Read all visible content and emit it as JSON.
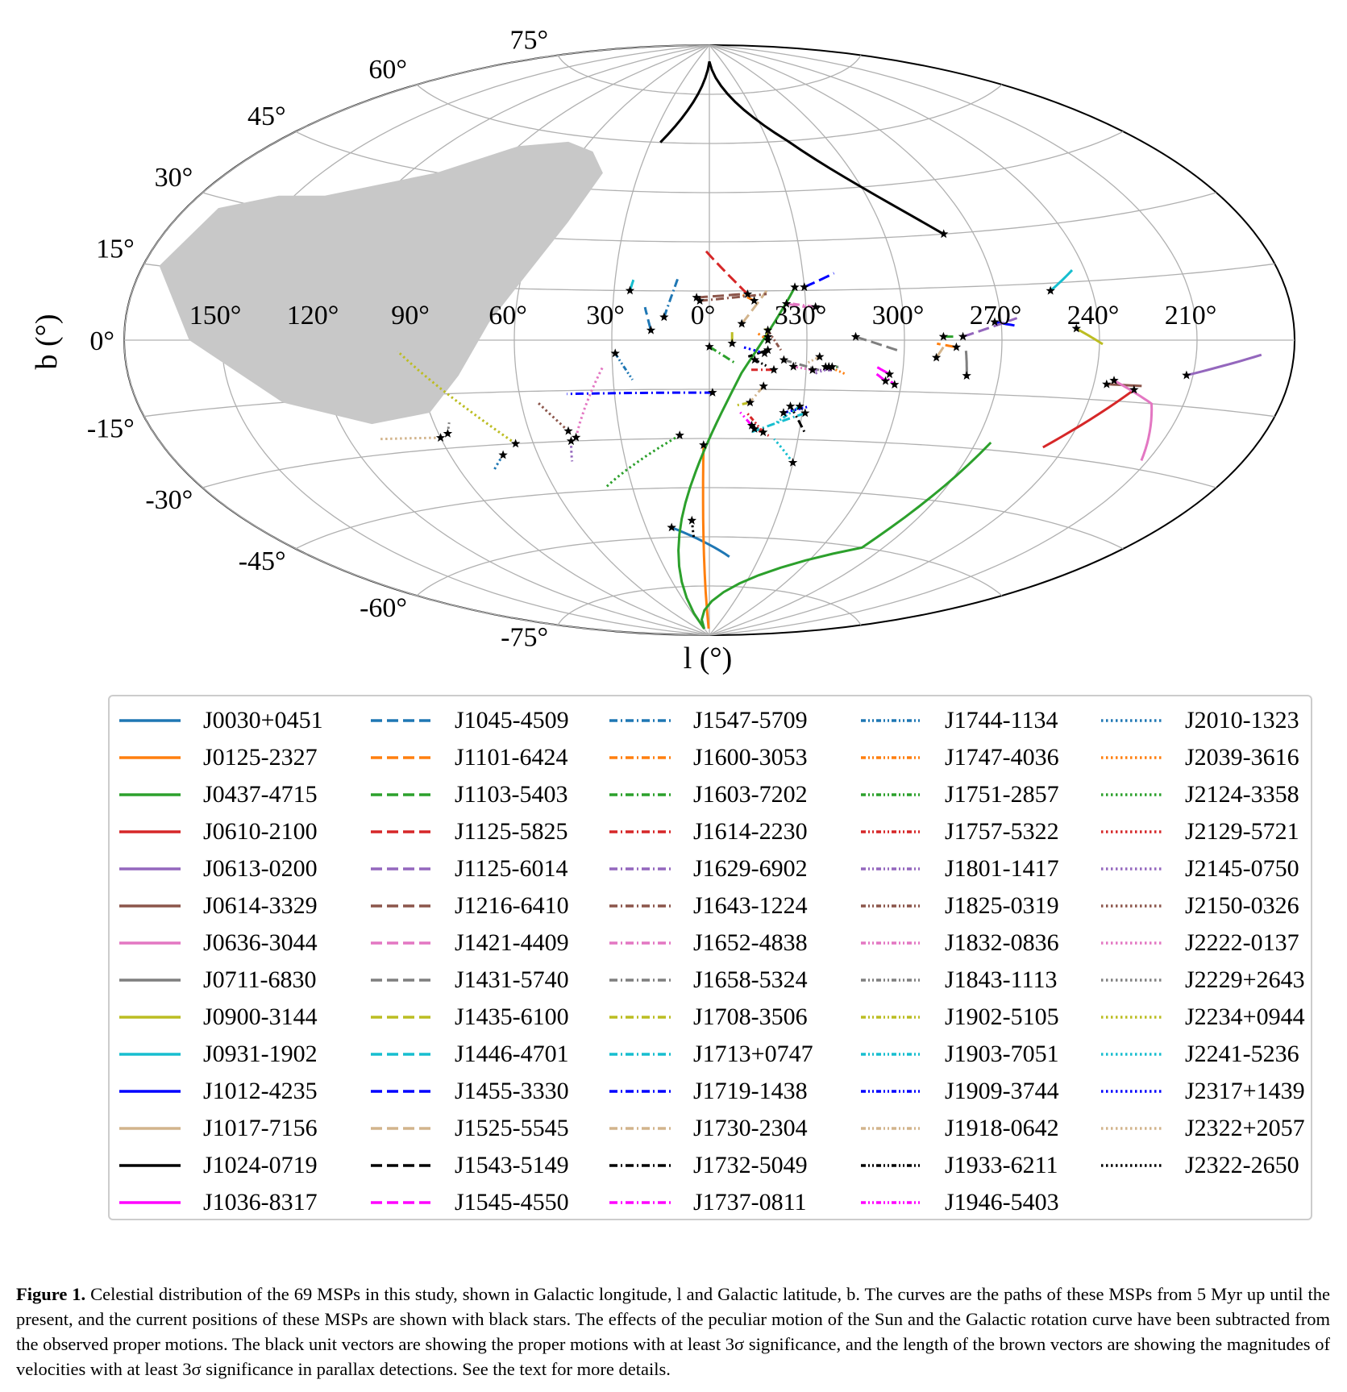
{
  "chart_data": {
    "type": "line",
    "projection": "aitoff",
    "xlabel": "l (°)",
    "ylabel": "b (°)",
    "lon_ticks": [
      "150°",
      "120°",
      "90°",
      "60°",
      "30°",
      "0°",
      "330°",
      "300°",
      "270°",
      "240°",
      "210°"
    ],
    "lat_ticks": [
      "75°",
      "60°",
      "45°",
      "30°",
      "15°",
      "0°",
      "-15°",
      "-30°",
      "-45°",
      "-60°",
      "-75°"
    ],
    "grid": true,
    "shaded_region": "gray patch in upper-left (unobservable sky)",
    "current_position_marker": "black star",
    "series": [
      {
        "name": "J0030+0451",
        "color": "#1f77b4",
        "style": "solid",
        "path": [
          [
            18,
            -57
          ],
          [
            -12,
            -66
          ]
        ]
      },
      {
        "name": "J0125-2327",
        "color": "#ff7f0e",
        "style": "solid",
        "path": [
          [
            2,
            -32
          ],
          [
            4,
            -88
          ]
        ]
      },
      {
        "name": "J0437-4715",
        "color": "#2ca02c",
        "style": "solid",
        "path": [
          [
            -27,
            16
          ],
          [
            -10,
            -10
          ],
          [
            5,
            -40
          ],
          [
            30,
            -88
          ],
          [
            -80,
            -60
          ],
          [
            -95,
            -28
          ]
        ]
      },
      {
        "name": "J0610-2100",
        "color": "#d62728",
        "style": "solid",
        "path": [
          [
            -133,
            -12
          ],
          [
            -113,
            -28
          ]
        ]
      },
      {
        "name": "J0613-0200",
        "color": "#9467bd",
        "style": "solid",
        "path": [
          [
            -148,
            -8
          ],
          [
            -170,
            -3
          ]
        ]
      },
      {
        "name": "J0614-3329",
        "color": "#8c564b",
        "style": "solid",
        "path": [
          [
            -124,
            -11
          ],
          [
            -135,
            -11
          ]
        ]
      },
      {
        "name": "J0636-3044",
        "color": "#e377c2",
        "style": "solid",
        "path": [
          [
            -126,
            -10
          ],
          [
            -140,
            -15
          ],
          [
            -148,
            -28
          ]
        ]
      },
      {
        "name": "J0711-6830",
        "color": "#7f7f7f",
        "style": "solid",
        "path": [
          [
            -80,
            -10
          ],
          [
            -79,
            -3
          ]
        ]
      },
      {
        "name": "J0900-3144",
        "color": "#bcbd22",
        "style": "solid",
        "path": [
          [
            -113,
            3
          ],
          [
            -121,
            -1
          ]
        ]
      },
      {
        "name": "J0931-1902",
        "color": "#17becf",
        "style": "solid",
        "path": [
          [
            -107,
            13
          ],
          [
            -116,
            18
          ]
        ]
      },
      {
        "name": "J1012-4235",
        "color": "#0000ff",
        "style": "solid",
        "path": [
          [
            -88,
            5
          ],
          [
            -94,
            4
          ]
        ]
      },
      {
        "name": "J1017-7156",
        "color": "#d2b48c",
        "style": "solid",
        "path": [
          [
            -70,
            -5
          ],
          [
            -72,
            -2
          ]
        ]
      },
      {
        "name": "J1024-0719",
        "color": "#000000",
        "style": "solid",
        "path": [
          [
            -80,
            30
          ],
          [
            -40,
            60
          ],
          [
            0,
            85
          ],
          [
            25,
            60
          ]
        ]
      },
      {
        "name": "J1036-8317",
        "color": "#ff00ff",
        "style": "solid",
        "path": [
          [
            -56,
            -10
          ],
          [
            -52,
            -8
          ]
        ]
      },
      {
        "name": "J1045-4509",
        "color": "#1f77b4",
        "style": "dashed",
        "path": [
          [
            18,
            3
          ],
          [
            20,
            10
          ]
        ]
      },
      {
        "name": "J1101-6424",
        "color": "#ff7f0e",
        "style": "dashed",
        "path": [
          [
            -76,
            -2
          ],
          [
            -70,
            -1
          ]
        ]
      },
      {
        "name": "J1103-5403",
        "color": "#2ca02c",
        "style": "dashed",
        "path": [
          [
            -72,
            1
          ],
          [
            -75,
            1
          ]
        ]
      },
      {
        "name": "J1125-5825",
        "color": "#d62728",
        "style": "dashed",
        "path": [
          [
            -12,
            14
          ],
          [
            2,
            28
          ]
        ]
      },
      {
        "name": "J1125-6014",
        "color": "#9467bd",
        "style": "dashed",
        "path": [
          [
            -78,
            1
          ],
          [
            -95,
            6
          ]
        ]
      },
      {
        "name": "J1216-6410",
        "color": "#8c564b",
        "style": "dashed",
        "path": [
          [
            4,
            13
          ],
          [
            -10,
            14
          ]
        ]
      },
      {
        "name": "J1421-4409",
        "color": "#e377c2",
        "style": "dashed",
        "path": [
          [
            -24,
            11
          ],
          [
            -30,
            10
          ]
        ]
      },
      {
        "name": "J1431-5740",
        "color": "#7f7f7f",
        "style": "dashed",
        "path": [
          [
            -45,
            1
          ],
          [
            -58,
            -3
          ]
        ]
      },
      {
        "name": "J1435-6100",
        "color": "#bcbd22",
        "style": "dashed",
        "path": [
          [
            -7,
            -1
          ],
          [
            -7,
            3
          ]
        ]
      },
      {
        "name": "J1446-4701",
        "color": "#17becf",
        "style": "dashed",
        "path": [
          [
            25,
            15
          ],
          [
            24,
            19
          ]
        ]
      },
      {
        "name": "J1455-3330",
        "color": "#0000ff",
        "style": "dashed",
        "path": [
          [
            -30,
            16
          ],
          [
            -40,
            20
          ]
        ]
      },
      {
        "name": "J1525-5545",
        "color": "#d2b48c",
        "style": "dashed",
        "path": [
          [
            -10,
            5
          ],
          [
            -18,
            15
          ]
        ]
      },
      {
        "name": "J1543-5149",
        "color": "#000000",
        "style": "dashed",
        "path": [
          [
            -18,
            -3
          ],
          [
            -12,
            -5
          ]
        ]
      },
      {
        "name": "J1545-4550",
        "color": "#ff00ff",
        "style": "dashed",
        "path": [
          [
            -55,
            -12
          ],
          [
            -52,
            -10
          ]
        ]
      },
      {
        "name": "J1547-5709",
        "color": "#1f77b4",
        "style": "dashdot",
        "path": [
          [
            14,
            7
          ],
          [
            10,
            19
          ]
        ]
      },
      {
        "name": "J1600-3053",
        "color": "#ff7f0e",
        "style": "dashdot",
        "path": [
          [
            -14,
            12
          ],
          [
            -10,
            14
          ]
        ]
      },
      {
        "name": "J1603-7202",
        "color": "#2ca02c",
        "style": "dashdot",
        "path": [
          [
            0,
            -2
          ],
          [
            -8,
            -7
          ]
        ]
      },
      {
        "name": "J1614-2230",
        "color": "#d62728",
        "style": "dashdot",
        "path": [
          [
            -20,
            -9
          ],
          [
            -13,
            -9
          ]
        ]
      },
      {
        "name": "J1629-6902",
        "color": "#9467bd",
        "style": "dashdot",
        "path": [
          [
            -38,
            -8
          ],
          [
            -33,
            -10
          ]
        ]
      },
      {
        "name": "J1643-1224",
        "color": "#8c564b",
        "style": "dashdot",
        "path": [
          [
            3,
            12
          ],
          [
            -18,
            14
          ]
        ]
      },
      {
        "name": "J1652-4838",
        "color": "#e377c2",
        "style": "dashdot",
        "path": [
          [
            -33,
            10
          ],
          [
            -26,
            11
          ]
        ]
      },
      {
        "name": "J1658-5324",
        "color": "#7f7f7f",
        "style": "dashdot",
        "path": [
          [
            -23,
            -6
          ],
          [
            -34,
            -9
          ]
        ]
      },
      {
        "name": "J1708-3506",
        "color": "#bcbd22",
        "style": "dashdot",
        "path": [
          [
            -13,
            -19
          ],
          [
            -8,
            -20
          ]
        ]
      },
      {
        "name": "J1713+0747",
        "color": "#17becf",
        "style": "dashdot",
        "path": [
          [
            -31,
            -22
          ],
          [
            -14,
            -28
          ]
        ]
      },
      {
        "name": "J1719-1438",
        "color": "#0000ff",
        "style": "dashdot",
        "path": [
          [
            -1,
            -16
          ],
          [
            45,
            -16
          ]
        ]
      },
      {
        "name": "J1730-2304",
        "color": "#d2b48c",
        "style": "dashdot",
        "path": [
          [
            -17,
            -14
          ],
          [
            -12,
            -20
          ]
        ]
      },
      {
        "name": "J1732-5049",
        "color": "#000000",
        "style": "dashdot",
        "path": [
          [
            -26,
            -20
          ],
          [
            -32,
            -28
          ]
        ]
      },
      {
        "name": "J1737-0811",
        "color": "#ff00ff",
        "style": "dashdot",
        "path": [
          [
            -14,
            -26
          ],
          [
            -10,
            -22
          ]
        ]
      },
      {
        "name": "J1744-1134",
        "color": "#1f77b4",
        "style": "dashdot2",
        "path": [
          [
            29,
            -4
          ],
          [
            24,
            -12
          ]
        ]
      },
      {
        "name": "J1747-4036",
        "color": "#ff7f0e",
        "style": "dashdot2",
        "path": [
          [
            -37,
            -8
          ],
          [
            -42,
            -10
          ]
        ]
      },
      {
        "name": "J1751-2857",
        "color": "#2ca02c",
        "style": "dashdot2",
        "path": [
          [
            -37,
            -8
          ],
          [
            -40,
            -8
          ]
        ]
      },
      {
        "name": "J1757-5322",
        "color": "#d62728",
        "style": "dashdot2",
        "path": [
          [
            -18,
            -28
          ],
          [
            -12,
            -22
          ]
        ]
      },
      {
        "name": "J1801-1417",
        "color": "#9467bd",
        "style": "dashdot2",
        "path": [
          [
            -32,
            -9
          ],
          [
            -38,
            -9
          ]
        ]
      },
      {
        "name": "J1825-0319",
        "color": "#8c564b",
        "style": "dashdot2",
        "path": [
          [
            -18,
            3
          ],
          [
            -22,
            -3
          ]
        ]
      },
      {
        "name": "J1832-0836",
        "color": "#e377c2",
        "style": "dashdot2",
        "path": [
          [
            -26,
            -8
          ],
          [
            -32,
            -9
          ]
        ]
      },
      {
        "name": "J1843-1113",
        "color": "#7f7f7f",
        "style": "dashdot2",
        "path": [
          [
            -36,
            -8
          ],
          [
            -40,
            -8
          ]
        ]
      },
      {
        "name": "J1902-5105",
        "color": "#bcbd22",
        "style": "dashdot2",
        "path": [
          [
            -18,
            1
          ],
          [
            -17,
            4
          ]
        ]
      },
      {
        "name": "J1903-7051",
        "color": "#17becf",
        "style": "dashdot2",
        "path": [
          [
            -29,
            -20
          ],
          [
            -22,
            -25
          ]
        ]
      },
      {
        "name": "J1909-3744",
        "color": "#0000ff",
        "style": "dashdot2",
        "path": [
          [
            -24,
            -22
          ],
          [
            -32,
            -20
          ]
        ]
      },
      {
        "name": "J1918-0642",
        "color": "#d2b48c",
        "style": "dashdot2",
        "path": [
          [
            -34,
            -5
          ],
          [
            -30,
            -7
          ]
        ]
      },
      {
        "name": "J1933-6211",
        "color": "#000000",
        "style": "dashdot2",
        "path": [
          [
            -14,
            -6
          ],
          [
            -18,
            -8
          ]
        ]
      },
      {
        "name": "J1946-5403",
        "color": "#ff00ff",
        "style": "dashdot2",
        "path": [
          [
            -58,
            -13
          ],
          [
            -55,
            -11
          ]
        ]
      },
      {
        "name": "J2010-1323",
        "color": "#1f77b4",
        "style": "dotted",
        "path": [
          [
            72,
            -33
          ],
          [
            78,
            -37
          ]
        ]
      },
      {
        "name": "J2039-3616",
        "color": "#ff7f0e",
        "style": "dotted",
        "path": [
          [
            -18,
            0
          ],
          [
            -15,
            2
          ]
        ]
      },
      {
        "name": "J2124-3358",
        "color": "#2ca02c",
        "style": "dotted",
        "path": [
          [
            10,
            -29
          ],
          [
            40,
            -44
          ]
        ]
      },
      {
        "name": "J2129-5721",
        "color": "#d62728",
        "style": "dotted",
        "path": [
          [
            -15,
            -27
          ],
          [
            -20,
            -29
          ]
        ]
      },
      {
        "name": "J2145-0750",
        "color": "#9467bd",
        "style": "dotted",
        "path": [
          [
            47,
            -30
          ],
          [
            49,
            -36
          ]
        ]
      },
      {
        "name": "J2150-0326",
        "color": "#8c564b",
        "style": "dotted",
        "path": [
          [
            47,
            -27
          ],
          [
            55,
            -18
          ]
        ]
      },
      {
        "name": "J2222-0137",
        "color": "#e377c2",
        "style": "dotted",
        "path": [
          [
            45,
            -29
          ],
          [
            33,
            -8
          ]
        ]
      },
      {
        "name": "J2229+2643",
        "color": "#7f7f7f",
        "style": "dotted",
        "path": [
          [
            87,
            -26
          ],
          [
            85,
            -23
          ]
        ]
      },
      {
        "name": "J2234+0944",
        "color": "#bcbd22",
        "style": "dotted",
        "path": [
          [
            66,
            -30
          ],
          [
            96,
            -3
          ]
        ]
      },
      {
        "name": "J2241-5236",
        "color": "#17becf",
        "style": "dotted",
        "path": [
          [
            -30,
            -37
          ],
          [
            -22,
            -30
          ]
        ]
      },
      {
        "name": "J2317+1439",
        "color": "#0000ff",
        "style": "dotted",
        "path": [
          [
            -17,
            -4
          ],
          [
            -10,
            -2
          ]
        ]
      },
      {
        "name": "J2322+2057",
        "color": "#d2b48c",
        "style": "dotted",
        "path": [
          [
            90,
            -27
          ],
          [
            110,
            -26
          ]
        ]
      },
      {
        "name": "J2322-2650",
        "color": "#000000",
        "style": "dotted",
        "path": [
          [
            8,
            -55
          ],
          [
            8,
            -60
          ]
        ]
      }
    ]
  },
  "legend": [
    "J0030+0451",
    "J0125-2327",
    "J0437-4715",
    "J0610-2100",
    "J0613-0200",
    "J0614-3329",
    "J0636-3044",
    "J0711-6830",
    "J0900-3144",
    "J0931-1902",
    "J1012-4235",
    "J1017-7156",
    "J1024-0719",
    "J1036-8317",
    "J1045-4509",
    "J1101-6424",
    "J1103-5403",
    "J1125-5825",
    "J1125-6014",
    "J1216-6410",
    "J1421-4409",
    "J1431-5740",
    "J1435-6100",
    "J1446-4701",
    "J1455-3330",
    "J1525-5545",
    "J1543-5149",
    "J1545-4550",
    "J1547-5709",
    "J1600-3053",
    "J1603-7202",
    "J1614-2230",
    "J1629-6902",
    "J1643-1224",
    "J1652-4838",
    "J1658-5324",
    "J1708-3506",
    "J1713+0747",
    "J1719-1438",
    "J1730-2304",
    "J1732-5049",
    "J1737-0811",
    "J1744-1134",
    "J1747-4036",
    "J1751-2857",
    "J1757-5322",
    "J1801-1417",
    "J1825-0319",
    "J1832-0836",
    "J1843-1113",
    "J1902-5105",
    "J1903-7051",
    "J1909-3744",
    "J1918-0642",
    "J1933-6211",
    "J1946-5403",
    "J2010-1323",
    "J2039-3616",
    "J2124-3358",
    "J2129-5721",
    "J2145-0750",
    "J2150-0326",
    "J2222-0137",
    "J2229+2643",
    "J2234+0944",
    "J2241-5236",
    "J2317+1439",
    "J2322+2057",
    "J2322-2650"
  ],
  "caption": {
    "label": "Figure 1.",
    "text": "Celestial distribution of the 69 MSPs in this study, shown in Galactic longitude, l and Galactic latitude, b. The curves are the paths of these MSPs from 5 Myr up until the present, and the current positions of these MSPs are shown with black stars. The effects of the peculiar motion of the Sun and the Galactic rotation curve have been subtracted from the observed proper motions. The black unit vectors are showing the proper motions with at least 3σ significance, and the length of the brown vectors are showing the magnitudes of velocities with at least 3σ significance in parallax detections. See the text for more details."
  }
}
